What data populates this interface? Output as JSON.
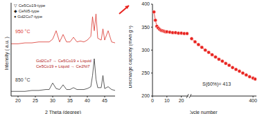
{
  "chart_data": [
    {
      "type": "line",
      "x_label": "2 Theta (degree)",
      "y_label": "Intensity ( a.u. )",
      "x": [
        18,
        20,
        22,
        24,
        26,
        28,
        29,
        30,
        31,
        32,
        33,
        34,
        35,
        36,
        37,
        38,
        39,
        40,
        41,
        41.5,
        42,
        42.5,
        43,
        44,
        44.5,
        45,
        46,
        47,
        48
      ],
      "series": [
        {
          "name": "950 °C",
          "color": "#d9322b",
          "values": [
            56,
            56,
            57,
            57,
            58,
            58,
            58,
            61,
            70,
            58,
            66,
            58,
            58,
            63,
            58,
            59,
            58,
            60,
            64,
            85,
            70,
            88,
            62,
            60,
            72,
            60,
            70,
            58,
            57
          ]
        },
        {
          "name": "850 °C",
          "color": "#333333",
          "values": [
            5,
            5,
            5,
            6,
            6,
            7,
            7,
            14,
            8,
            7,
            12,
            7,
            7,
            9,
            7,
            7,
            7,
            8,
            10,
            22,
            40,
            18,
            9,
            9,
            22,
            8,
            10,
            7,
            6
          ]
        }
      ],
      "xlim": [
        18,
        48
      ],
      "xticks": [
        20,
        25,
        30,
        35,
        40,
        45
      ],
      "ylim": [
        0,
        100
      ],
      "tick_labels": "x",
      "annotations": [
        "▽ Ce5Co19-type",
        "◆ CeNi5-type",
        "● Gd2Co7-type",
        "Gd2Co7 → Ce5Co19 + Liquid",
        "Ce5Co19 + Liquid → Ce2Ni7"
      ]
    },
    {
      "type": "line",
      "y_label": "Discharge capacity (mAh g⁻¹)",
      "color": "#e8231f",
      "marker": "circle",
      "x": [
        1,
        2,
        3,
        4,
        5,
        6,
        7,
        8,
        9,
        10,
        12,
        14,
        16,
        18,
        20,
        22,
        24
      ],
      "values": [
        383,
        365,
        352,
        348,
        345,
        343,
        342,
        341,
        340,
        340,
        339,
        338,
        338,
        337,
        337,
        336,
        336
      ],
      "xlim": [
        0,
        25
      ],
      "xticks": [
        0,
        10,
        20
      ],
      "ylim": [
        200,
        400
      ],
      "yticks": [
        200,
        250,
        300,
        350,
        400
      ]
    },
    {
      "type": "line",
      "x_label": "Cycle number",
      "color": "#e8231f",
      "marker": "circle",
      "x": [
        40,
        60,
        80,
        100,
        120,
        140,
        160,
        180,
        200,
        220,
        240,
        260,
        280,
        300,
        320,
        340,
        360,
        380,
        400,
        413
      ],
      "values": [
        325,
        318,
        312,
        306,
        300,
        295,
        290,
        285,
        280,
        276,
        271,
        267,
        262,
        258,
        254,
        250,
        246,
        242,
        239,
        237
      ],
      "xlim": [
        30,
        420
      ],
      "xticks": [
        400
      ],
      "ylim": [
        200,
        400
      ],
      "yticks": [
        200,
        250,
        300,
        350,
        400
      ],
      "annotations": [
        "S(60%)= 413"
      ]
    }
  ]
}
